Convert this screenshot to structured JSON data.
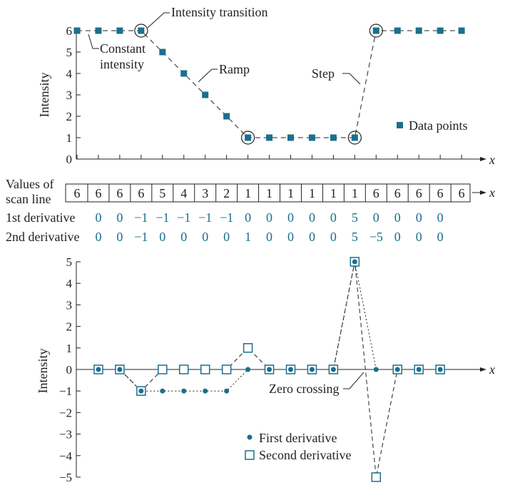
{
  "colors": {
    "teal": "#1a6f8f",
    "ink": "#222222"
  },
  "figure": {
    "scan_line_label_1": "Values of",
    "scan_line_label_2": "scan line",
    "first_derivative_label": "1st derivative",
    "second_derivative_label": "2nd derivative",
    "x_label": "x",
    "scan_line_values": [
      "6",
      "6",
      "6",
      "6",
      "5",
      "4",
      "3",
      "2",
      "1",
      "1",
      "1",
      "1",
      "1",
      "1",
      "6",
      "6",
      "6",
      "6",
      "6"
    ],
    "first_derivative_values": [
      "0",
      "0",
      "−1",
      "−1",
      "−1",
      "−1",
      "−1",
      "0",
      "0",
      "0",
      "0",
      "0",
      "5",
      "0",
      "0",
      "0",
      "0"
    ],
    "second_derivative_values": [
      "0",
      "0",
      "−1",
      "0",
      "0",
      "0",
      "0",
      "1",
      "0",
      "0",
      "0",
      "0",
      "5",
      "−5",
      "0",
      "0",
      "0"
    ]
  },
  "top_chart": {
    "ylabel": "Intensity",
    "y_ticks": [
      "0",
      "1",
      "2",
      "3",
      "4",
      "5",
      "6"
    ],
    "points": [
      6,
      6,
      6,
      6,
      5,
      4,
      3,
      2,
      1,
      1,
      1,
      1,
      1,
      1,
      6,
      6,
      6,
      6,
      6
    ],
    "annotations": {
      "intensity_transition": "Intensity transition",
      "constant_intensity_1": "Constant",
      "constant_intensity_2": "intensity",
      "ramp": "Ramp",
      "step": "Step"
    },
    "legend": "Data points"
  },
  "bottom_chart": {
    "ylabel": "Intensity",
    "y_ticks": [
      "5",
      "4",
      "3",
      "2",
      "1",
      "0",
      "−1",
      "−2",
      "−3",
      "−4",
      "−5"
    ],
    "first_derivative": [
      0,
      0,
      -1,
      -1,
      -1,
      -1,
      -1,
      0,
      0,
      0,
      0,
      0,
      5,
      0,
      0,
      0,
      0
    ],
    "second_derivative": [
      0,
      0,
      -1,
      0,
      0,
      0,
      0,
      1,
      0,
      0,
      0,
      0,
      5,
      -5,
      0,
      0,
      0
    ],
    "zero_crossing": "Zero crossing",
    "legend_first": "First derivative",
    "legend_second": "Second derivative"
  },
  "chart_data": [
    {
      "type": "line",
      "ylabel": "Intensity",
      "xlabel": "x",
      "x": [
        1,
        2,
        3,
        4,
        5,
        6,
        7,
        8,
        9,
        10,
        11,
        12,
        13,
        14,
        15,
        16,
        17,
        18,
        19
      ],
      "series": [
        {
          "name": "Data points",
          "values": [
            6,
            6,
            6,
            6,
            5,
            4,
            3,
            2,
            1,
            1,
            1,
            1,
            1,
            1,
            6,
            6,
            6,
            6,
            6
          ]
        }
      ],
      "ylim": [
        0,
        6
      ]
    },
    {
      "type": "line",
      "ylabel": "Intensity",
      "xlabel": "x",
      "x": [
        2,
        3,
        4,
        5,
        6,
        7,
        8,
        9,
        10,
        11,
        12,
        13,
        14,
        15,
        16,
        17,
        18
      ],
      "series": [
        {
          "name": "First derivative",
          "values": [
            0,
            0,
            -1,
            -1,
            -1,
            -1,
            -1,
            0,
            0,
            0,
            0,
            0,
            5,
            0,
            0,
            0,
            0
          ]
        },
        {
          "name": "Second derivative",
          "values": [
            0,
            0,
            -1,
            0,
            0,
            0,
            0,
            1,
            0,
            0,
            0,
            0,
            5,
            -5,
            0,
            0,
            0
          ]
        }
      ],
      "ylim": [
        -5,
        5
      ]
    }
  ]
}
